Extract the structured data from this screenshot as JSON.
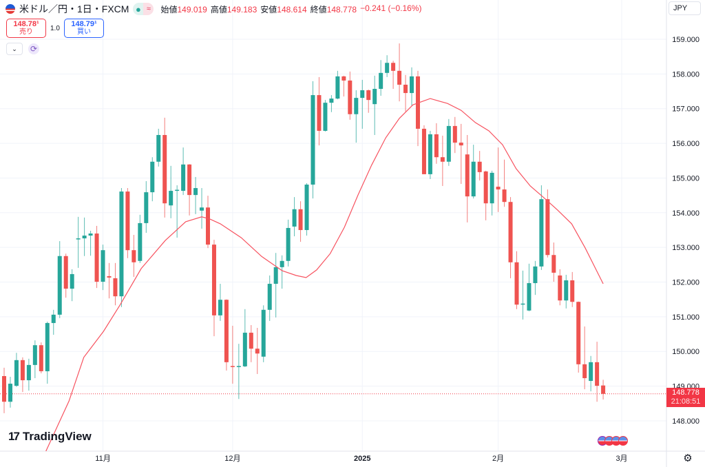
{
  "header": {
    "symbol_title": "米ドル／円・1日・FXCM",
    "status_dot": "●",
    "approx_sign": "≈",
    "ohlc": [
      {
        "label": "始値",
        "value": "149.019"
      },
      {
        "label": "高値",
        "value": "149.183"
      },
      {
        "label": "安値",
        "value": "148.614"
      },
      {
        "label": "終値",
        "value": "148.778"
      }
    ],
    "change": "−0.241 (−0.16%)"
  },
  "trade": {
    "sell_price": "148.78¹",
    "sell_label": "売り",
    "quantity": "1.0",
    "buy_price": "148.79¹",
    "buy_label": "買い"
  },
  "controls": {
    "dropdown_glyph": "⌄",
    "refresh_glyph": "⟳"
  },
  "currency": "JPY",
  "current_price": {
    "price": "148.778",
    "countdown": "21:08:51"
  },
  "logo_text": "TradingView",
  "settings_glyph": "⚙",
  "colors": {
    "up": "#26a69a",
    "down": "#ef5350",
    "ma": "#f7525f",
    "grid": "#f0f3fa"
  },
  "chart_data": {
    "type": "candlestick",
    "title": "米ドル／円・1日・FXCM",
    "ylim": [
      147.0,
      160.1
    ],
    "y_ticks": [
      "159.000",
      "158.000",
      "157.000",
      "156.000",
      "155.000",
      "154.000",
      "153.000",
      "152.000",
      "151.000",
      "150.000",
      "149.000",
      "148.000"
    ],
    "x_ticks": [
      {
        "label": "11月",
        "bar": 16
      },
      {
        "label": "12月",
        "bar": 37
      },
      {
        "label": "2025",
        "bar": 58
      },
      {
        "label": "2月",
        "bar": 80
      },
      {
        "label": "3月",
        "bar": 100
      }
    ],
    "last_price": 148.778,
    "ohlc": [
      [
        149.29,
        149.53,
        148.22,
        148.55
      ],
      [
        148.55,
        149.27,
        148.38,
        149.07
      ],
      [
        149.01,
        149.96,
        148.98,
        149.75
      ],
      [
        149.75,
        149.83,
        148.83,
        149.17
      ],
      [
        149.17,
        149.79,
        148.87,
        149.61
      ],
      [
        149.61,
        150.32,
        149.23,
        150.18
      ],
      [
        150.18,
        150.26,
        149.37,
        149.43
      ],
      [
        149.43,
        150.86,
        149.07,
        150.82
      ],
      [
        150.82,
        151.2,
        150.48,
        151.06
      ],
      [
        151.06,
        153.18,
        150.96,
        152.75
      ],
      [
        152.75,
        152.82,
        151.55,
        151.81
      ],
      [
        151.81,
        152.37,
        151.45,
        152.23
      ],
      [
        153.23,
        153.88,
        152.41,
        153.26
      ],
      [
        153.26,
        153.86,
        152.75,
        153.34
      ],
      [
        153.34,
        153.48,
        152.76,
        153.4
      ],
      [
        153.4,
        153.62,
        151.83,
        152.01
      ],
      [
        152.01,
        153.08,
        151.77,
        152.92
      ],
      [
        152.17,
        152.55,
        151.53,
        152.13
      ],
      [
        152.11,
        152.55,
        151.33,
        151.59
      ],
      [
        151.59,
        154.71,
        151.28,
        154.61
      ],
      [
        154.61,
        154.71,
        152.69,
        152.92
      ],
      [
        152.92,
        153.36,
        152.15,
        152.57
      ],
      [
        152.61,
        153.94,
        152.55,
        153.7
      ],
      [
        153.7,
        154.91,
        153.42,
        154.59
      ],
      [
        154.59,
        155.6,
        154.33,
        155.47
      ],
      [
        155.47,
        156.42,
        155.33,
        156.24
      ],
      [
        156.24,
        156.74,
        153.86,
        154.27
      ],
      [
        154.21,
        155.35,
        153.84,
        154.63
      ],
      [
        154.63,
        154.79,
        153.28,
        154.66
      ],
      [
        154.63,
        155.88,
        154.51,
        155.39
      ],
      [
        155.39,
        155.4,
        153.92,
        154.51
      ],
      [
        154.51,
        155.03,
        153.96,
        154.71
      ],
      [
        154.06,
        154.71,
        153.54,
        154.15
      ],
      [
        154.15,
        154.49,
        152.98,
        153.08
      ],
      [
        153.08,
        153.22,
        150.44,
        151.04
      ],
      [
        151.04,
        151.95,
        150.88,
        151.49
      ],
      [
        151.49,
        151.5,
        149.45,
        149.69
      ],
      [
        149.58,
        150.74,
        149.07,
        149.55
      ],
      [
        149.55,
        150.22,
        148.63,
        149.58
      ],
      [
        149.57,
        151.22,
        149.55,
        150.54
      ],
      [
        150.54,
        150.76,
        149.69,
        150.08
      ],
      [
        150.08,
        150.68,
        149.35,
        149.94
      ],
      [
        149.85,
        151.33,
        149.69,
        151.2
      ],
      [
        151.2,
        152.19,
        150.88,
        151.95
      ],
      [
        151.95,
        152.84,
        150.98,
        152.43
      ],
      [
        152.43,
        152.77,
        151.81,
        152.61
      ],
      [
        152.61,
        153.8,
        152.45,
        153.56
      ],
      [
        153.6,
        154.45,
        153.32,
        154.1
      ],
      [
        154.1,
        154.33,
        153.16,
        153.5
      ],
      [
        153.5,
        154.85,
        153.34,
        154.81
      ],
      [
        154.81,
        157.79,
        154.41,
        157.39
      ],
      [
        157.39,
        157.91,
        155.94,
        156.36
      ],
      [
        156.36,
        157.25,
        156.34,
        157.17
      ],
      [
        157.17,
        157.39,
        156.9,
        157.29
      ],
      [
        157.29,
        158.09,
        157.27,
        157.93
      ],
      [
        157.93,
        157.95,
        157.35,
        157.81
      ],
      [
        157.81,
        158.07,
        156.68,
        156.84
      ],
      [
        156.84,
        157.53,
        156.02,
        157.31
      ],
      [
        157.31,
        157.83,
        156.42,
        157.53
      ],
      [
        157.53,
        157.55,
        156.88,
        157.25
      ],
      [
        157.13,
        157.95,
        156.24,
        157.57
      ],
      [
        157.57,
        158.4,
        157.37,
        158.03
      ],
      [
        158.03,
        158.54,
        157.91,
        158.32
      ],
      [
        158.32,
        158.38,
        157.57,
        158.09
      ],
      [
        158.09,
        158.88,
        157.21,
        157.69
      ],
      [
        157.69,
        157.97,
        156.92,
        157.45
      ],
      [
        157.45,
        158.19,
        157.09,
        157.93
      ],
      [
        157.93,
        158.09,
        155.92,
        156.42
      ],
      [
        156.42,
        156.52,
        155.11,
        155.11
      ],
      [
        155.11,
        156.36,
        154.97,
        156.26
      ],
      [
        156.26,
        156.58,
        155.41,
        155.6
      ],
      [
        155.6,
        156.22,
        154.77,
        155.47
      ],
      [
        155.47,
        156.7,
        155.35,
        156.5
      ],
      [
        156.5,
        156.76,
        155.72,
        156.02
      ],
      [
        156.02,
        156.56,
        154.83,
        155.94
      ],
      [
        155.68,
        156.24,
        153.72,
        154.47
      ],
      [
        154.47,
        155.96,
        154.41,
        155.47
      ],
      [
        155.47,
        155.78,
        154.93,
        155.17
      ],
      [
        155.19,
        155.21,
        153.78,
        154.27
      ],
      [
        154.27,
        155.21,
        153.92,
        155.15
      ],
      [
        154.75,
        155.88,
        154.02,
        154.67
      ],
      [
        154.67,
        155.53,
        154.17,
        154.31
      ],
      [
        154.31,
        154.45,
        152.11,
        152.57
      ],
      [
        152.57,
        152.89,
        151.22,
        151.35
      ],
      [
        151.36,
        152.33,
        150.92,
        151.38
      ],
      [
        151.18,
        152.53,
        151.16,
        151.97
      ],
      [
        151.97,
        152.61,
        151.63,
        152.45
      ],
      [
        152.45,
        154.79,
        152.35,
        154.39
      ],
      [
        154.39,
        154.67,
        152.71,
        152.78
      ],
      [
        152.78,
        153.14,
        152.01,
        152.27
      ],
      [
        152.19,
        152.37,
        151.33,
        151.47
      ],
      [
        151.47,
        152.21,
        151.24,
        152.05
      ],
      [
        152.05,
        152.29,
        151.28,
        151.43
      ],
      [
        151.43,
        151.44,
        149.39,
        149.63
      ],
      [
        149.63,
        150.72,
        148.91,
        149.23
      ],
      [
        149.15,
        149.87,
        148.85,
        149.69
      ],
      [
        149.69,
        150.28,
        148.55,
        149.01
      ],
      [
        149.019,
        149.183,
        148.614,
        148.778
      ]
    ],
    "moving_average": [
      [
        6.6,
        147.06
      ],
      [
        10.5,
        148.57
      ],
      [
        12.9,
        149.83
      ],
      [
        16.1,
        150.58
      ],
      [
        18.8,
        151.35
      ],
      [
        22.2,
        152.39
      ],
      [
        26.1,
        153.2
      ],
      [
        29.4,
        153.74
      ],
      [
        32.0,
        153.88
      ],
      [
        33.3,
        153.82
      ],
      [
        35.0,
        153.68
      ],
      [
        38.4,
        153.28
      ],
      [
        41.7,
        152.74
      ],
      [
        45.0,
        152.33
      ],
      [
        47.3,
        152.19
      ],
      [
        48.9,
        152.13
      ],
      [
        50.6,
        152.35
      ],
      [
        52.8,
        152.82
      ],
      [
        55.1,
        153.58
      ],
      [
        57.3,
        154.51
      ],
      [
        59.5,
        155.37
      ],
      [
        61.8,
        156.16
      ],
      [
        64.0,
        156.72
      ],
      [
        66.2,
        157.11
      ],
      [
        69.0,
        157.29
      ],
      [
        71.8,
        157.15
      ],
      [
        74.0,
        156.95
      ],
      [
        76.3,
        156.6
      ],
      [
        78.5,
        156.36
      ],
      [
        80.7,
        155.96
      ],
      [
        82.9,
        155.27
      ],
      [
        85.2,
        154.77
      ],
      [
        87.4,
        154.43
      ],
      [
        89.6,
        154.08
      ],
      [
        91.9,
        153.68
      ],
      [
        94.1,
        152.98
      ],
      [
        97.0,
        151.95
      ]
    ]
  }
}
